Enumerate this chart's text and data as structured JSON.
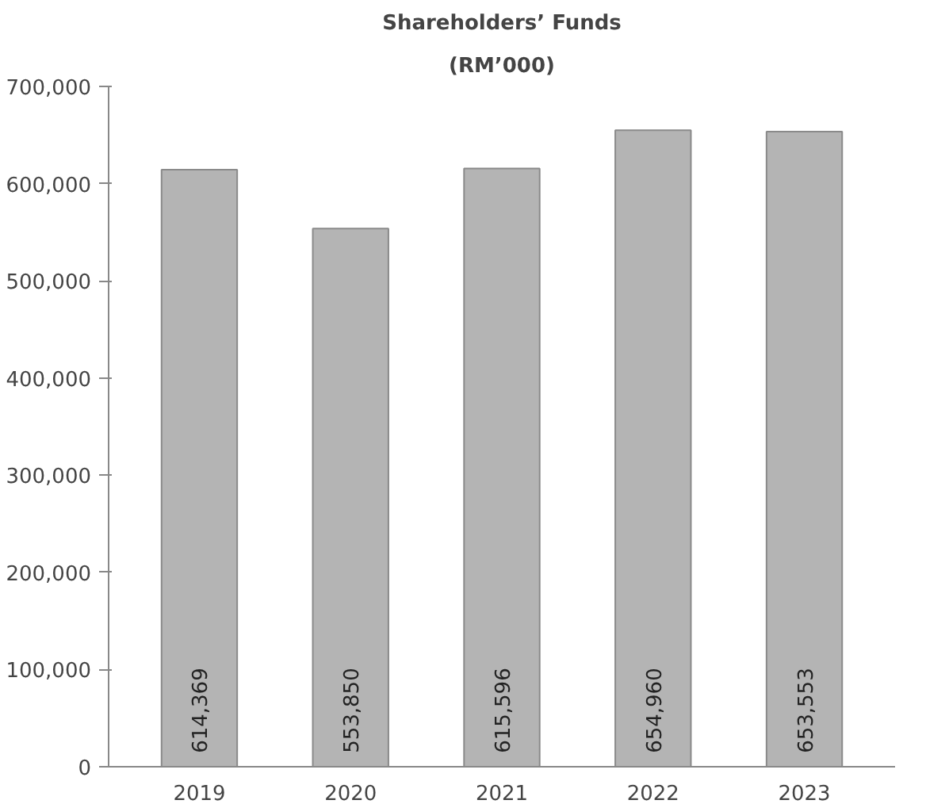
{
  "chart_data": {
    "type": "bar",
    "title": "Shareholders’ Funds",
    "subtitle": "(RM’000)",
    "categories": [
      "2019",
      "2020",
      "2021",
      "2022",
      "2023"
    ],
    "values": [
      614369,
      553850,
      615596,
      654960,
      653553
    ],
    "value_labels": [
      "614,369",
      "553,850",
      "615,596",
      "654,960",
      "653,553"
    ],
    "color": "#b4b4b4",
    "ylim": [
      0,
      700000
    ],
    "yticks": [
      0,
      {
        "value": 100000,
        "label": "100,000"
      },
      {
        "value": 200000,
        "label": "200,000"
      },
      {
        "value": 300000,
        "label": "300,000"
      },
      {
        "value": 400000,
        "label": "400,000"
      },
      {
        "value": 500000,
        "label": "500,000"
      },
      {
        "value": 600000,
        "label": "600,000"
      },
      {
        "value": 700000,
        "label": "700,000"
      }
    ],
    "grid": false
  }
}
